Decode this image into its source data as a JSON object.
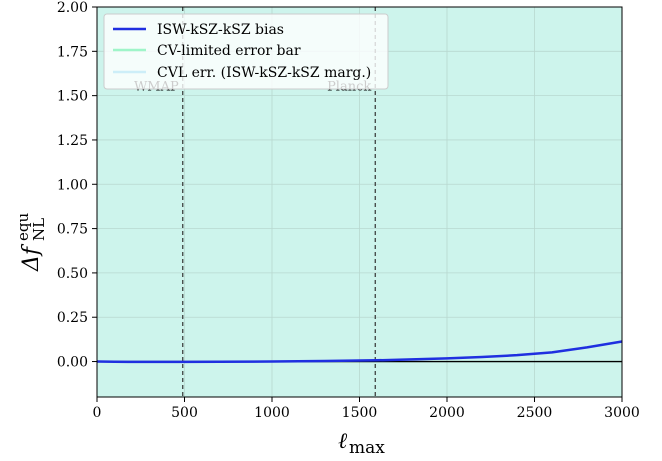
{
  "chart_data": {
    "type": "line",
    "xlabel_main": "ℓ",
    "xlabel_sub": "max",
    "ylabel_main": "Δf",
    "ylabel_sup": "equ",
    "ylabel_sub": "NL",
    "xlim": [
      0,
      3000
    ],
    "ylim": [
      -0.2,
      2.0
    ],
    "x_ticks": [
      0,
      500,
      1000,
      1500,
      2000,
      2500,
      3000
    ],
    "x_tick_labels": [
      "0",
      "500",
      "1000",
      "1500",
      "2000",
      "2500",
      "3000"
    ],
    "y_ticks": [
      0.0,
      0.25,
      0.5,
      0.75,
      1.0,
      1.25,
      1.5,
      1.75,
      2.0
    ],
    "y_tick_labels": [
      "0.00",
      "0.25",
      "0.50",
      "0.75",
      "1.00",
      "1.25",
      "1.50",
      "1.75",
      "2.00"
    ],
    "grid": true,
    "legend_position": "top-left",
    "series": [
      {
        "name": "ISW-kSZ-kSZ bias",
        "color": "#1f2fe0",
        "x": [
          0,
          100,
          200,
          300,
          400,
          500,
          700,
          1000,
          1300,
          1600,
          1800,
          2000,
          2200,
          2400,
          2600,
          2800,
          3000
        ],
        "y": [
          0.0,
          -0.001,
          -0.002,
          -0.002,
          -0.002,
          -0.002,
          -0.001,
          0.0,
          0.003,
          0.007,
          0.012,
          0.018,
          0.026,
          0.036,
          0.052,
          0.08,
          0.113
        ]
      }
    ],
    "bands": [
      {
        "name": "CV-limited error bar",
        "color": "#9ff5c9",
        "fill_color": "#c9f6e3"
      },
      {
        "name": "CVL err. (ISW-kSZ-kSZ marg.)",
        "color": "#cdeef8",
        "fill_color": "#cdf4ec"
      }
    ],
    "vlines": [
      {
        "x": 490,
        "label": "WMAP"
      },
      {
        "x": 1590,
        "label": "Planck"
      }
    ],
    "hline_y": 0.0
  }
}
